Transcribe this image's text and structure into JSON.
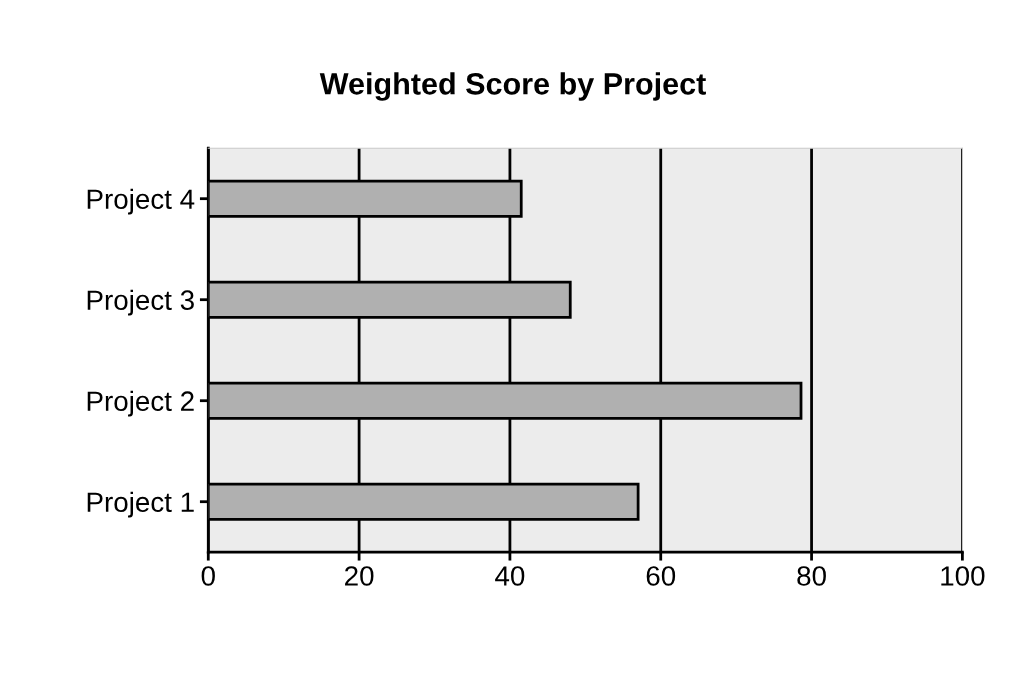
{
  "chart_data": {
    "type": "bar",
    "orientation": "horizontal",
    "title": "Weighted Score by Project",
    "categories": [
      "Project 4",
      "Project 3",
      "Project 2",
      "Project 1"
    ],
    "values": [
      41.5,
      48,
      78.6,
      57
    ],
    "color": "#b0b0b0",
    "xlim": [
      0,
      100
    ],
    "xticks": [
      0,
      20,
      40,
      60,
      80,
      100
    ],
    "grid": "x"
  }
}
